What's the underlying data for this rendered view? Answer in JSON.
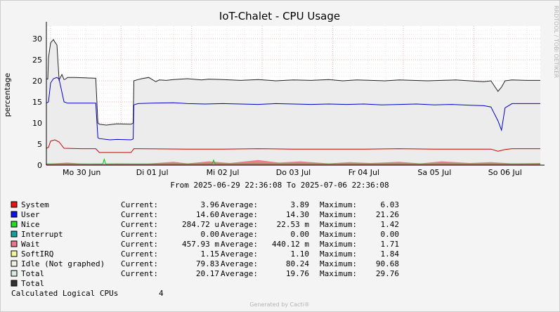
{
  "chart_data": {
    "type": "area",
    "title": "IoT-Chalet - CPU Usage",
    "ylabel": "percentage",
    "ylim": [
      0,
      33
    ],
    "yticks": [
      0,
      5,
      10,
      15,
      20,
      25,
      30
    ],
    "x_range": [
      "2025-06-29 22:36:08",
      "2025-07-06 22:36:08"
    ],
    "xticks": [
      {
        "label": "Mo 30 Jun",
        "day": 0.5
      },
      {
        "label": "Di 01 Jul",
        "day": 1.5
      },
      {
        "label": "Mi 02 Jul",
        "day": 2.5
      },
      {
        "label": "Do 03 Jul",
        "day": 3.5
      },
      {
        "label": "Fr 04 Jul",
        "day": 4.5
      },
      {
        "label": "Sa 05 Jul",
        "day": 5.5
      },
      {
        "label": "So 06 Jul",
        "day": 6.5
      }
    ],
    "grid": true,
    "from_to": "From 2025-06-29 22:36:08 To 2025-07-06 22:36:08",
    "side_text": "RRDTOOL / TOBI OETIKER",
    "footer": "Generated by Cacti®",
    "series": [
      {
        "name": "Total",
        "color": "#222222",
        "style": "line",
        "x": [
          0,
          0.02,
          0.03,
          0.06,
          0.1,
          0.12,
          0.15,
          0.18,
          0.22,
          0.25,
          0.27,
          0.3,
          0.35,
          0.4,
          0.55,
          0.7,
          0.73,
          0.75,
          0.85,
          0.9,
          1.0,
          1.2,
          1.23,
          1.24,
          1.3,
          1.35,
          1.45,
          1.55,
          1.6,
          1.7,
          1.8,
          2.0,
          2.2,
          2.3,
          2.5,
          2.75,
          3.0,
          3.25,
          3.5,
          3.75,
          4.0,
          4.2,
          4.4,
          4.6,
          4.8,
          5.0,
          5.2,
          5.4,
          5.6,
          5.8,
          6.0,
          6.2,
          6.3,
          6.4,
          6.45,
          6.5,
          6.6,
          6.8,
          7.0
        ],
        "y": [
          20.5,
          20.4,
          25.5,
          29.0,
          29.8,
          29.2,
          28.5,
          20.2,
          21.5,
          20.3,
          20.4,
          20.8,
          20.8,
          20.8,
          20.7,
          20.6,
          10.0,
          9.7,
          9.5,
          9.6,
          9.8,
          9.7,
          10.0,
          20.0,
          20.3,
          20.5,
          20.8,
          19.8,
          20.2,
          20.1,
          20.3,
          20.5,
          20.2,
          20.4,
          20.3,
          20.1,
          20.3,
          20.0,
          20.2,
          20.1,
          20.3,
          20.0,
          20.2,
          20.1,
          20.0,
          20.2,
          20.1,
          20.0,
          20.1,
          20.2,
          20.0,
          19.8,
          20.0,
          17.5,
          18.5,
          20.0,
          20.2,
          20.1,
          20.1
        ]
      },
      {
        "name": "User",
        "color": "#0000cc",
        "style": "line",
        "x": [
          0,
          0.03,
          0.06,
          0.1,
          0.15,
          0.18,
          0.25,
          0.3,
          0.5,
          0.7,
          0.73,
          0.75,
          0.9,
          1.0,
          1.2,
          1.23,
          1.24,
          1.3,
          1.5,
          1.8,
          2.0,
          2.25,
          2.5,
          2.75,
          3.0,
          3.25,
          3.5,
          3.75,
          4.0,
          4.25,
          4.5,
          4.75,
          5.0,
          5.25,
          5.5,
          5.75,
          6.0,
          6.2,
          6.3,
          6.4,
          6.45,
          6.5,
          6.6,
          6.8,
          7.0
        ],
        "y": [
          14.7,
          15.0,
          19.5,
          20.5,
          20.8,
          20.4,
          15.0,
          14.7,
          14.7,
          14.7,
          6.5,
          6.3,
          6.0,
          6.1,
          6.0,
          6.2,
          14.3,
          14.6,
          14.7,
          14.8,
          14.6,
          14.5,
          14.6,
          14.5,
          14.4,
          14.6,
          14.5,
          14.4,
          14.5,
          14.4,
          14.5,
          14.3,
          14.4,
          14.5,
          14.3,
          14.4,
          14.2,
          14.1,
          13.8,
          10.5,
          8.3,
          13.6,
          14.6,
          14.6,
          14.6
        ]
      },
      {
        "name": "System",
        "color": "#cc0000",
        "style": "line",
        "x": [
          0,
          0.03,
          0.06,
          0.12,
          0.18,
          0.25,
          0.5,
          0.7,
          0.75,
          1.2,
          1.24,
          1.3,
          2.0,
          2.5,
          3.0,
          3.5,
          4.0,
          4.5,
          5.0,
          5.5,
          6.0,
          6.3,
          6.4,
          6.5,
          6.6,
          7.0
        ],
        "y": [
          4.0,
          4.2,
          5.7,
          6.0,
          5.5,
          4.0,
          3.9,
          3.9,
          3.0,
          3.0,
          3.9,
          3.9,
          3.8,
          3.8,
          3.9,
          3.8,
          3.8,
          3.8,
          3.9,
          3.8,
          3.8,
          3.8,
          3.3,
          3.7,
          3.9,
          3.9
        ]
      },
      {
        "name": "Wait",
        "color": "#e87f8a",
        "style": "area",
        "x": [
          0,
          0.3,
          0.6,
          1.0,
          1.4,
          1.8,
          2.0,
          2.3,
          2.6,
          3.0,
          3.3,
          3.6,
          4.0,
          4.3,
          4.6,
          5.0,
          5.3,
          5.6,
          6.0,
          6.3,
          6.6,
          7.0
        ],
        "y": [
          0.3,
          0.6,
          0.2,
          0.4,
          0.3,
          0.8,
          0.4,
          0.9,
          0.5,
          1.2,
          0.6,
          0.9,
          0.4,
          0.7,
          0.5,
          0.8,
          0.4,
          0.9,
          0.5,
          0.7,
          0.4,
          0.5
        ]
      },
      {
        "name": "Nice",
        "color": "#00cc00",
        "style": "line",
        "x": [
          0,
          0.8,
          0.82,
          0.84,
          1.5,
          2.35,
          2.37,
          2.39,
          3.0,
          4.0,
          5.0,
          6.0,
          7.0
        ],
        "y": [
          0.3,
          0.3,
          1.4,
          0.3,
          0.3,
          0.3,
          1.2,
          0.3,
          0.3,
          0.3,
          0.3,
          0.3,
          0.3
        ]
      },
      {
        "name": "Idle",
        "color": "#dddddd",
        "style": "area"
      }
    ]
  },
  "legend": [
    {
      "name": "System",
      "swatch": "#ee1111",
      "current": "3.96",
      "average": "3.89",
      "maximum": "6.03"
    },
    {
      "name": "User",
      "swatch": "#1111ee",
      "current": "14.60",
      "average": "14.30",
      "maximum": "21.26"
    },
    {
      "name": "Nice",
      "swatch": "#22dd22",
      "current": "284.72 u",
      "average": "22.53 m",
      "maximum": "1.42"
    },
    {
      "name": "Interrupt",
      "swatch": "#11a0a0",
      "current": "0.00",
      "average": "0.00",
      "maximum": "0.00"
    },
    {
      "name": "Wait",
      "swatch": "#e8778a",
      "current": "457.93 m",
      "average": "440.12 m",
      "maximum": "1.71"
    },
    {
      "name": "SoftIRQ",
      "swatch": "#f4f49a",
      "current": "1.15",
      "average": "1.10",
      "maximum": "1.84"
    },
    {
      "name": "Idle (Not graphed)",
      "swatch": "#f0f0e0",
      "current": "79.83",
      "average": "80.24",
      "maximum": "90.68"
    },
    {
      "name": "Total",
      "swatch": "#d6ebe0",
      "current": "20.17",
      "average": "19.76",
      "maximum": "29.76"
    },
    {
      "name": "Total",
      "swatch": "#333333",
      "current": "",
      "average": "",
      "maximum": ""
    }
  ],
  "labels": {
    "current": "Current:",
    "average": "Average:",
    "maximum": "Maximum:"
  },
  "calc": {
    "label": "Calculated Logical CPUs",
    "value": "4"
  }
}
